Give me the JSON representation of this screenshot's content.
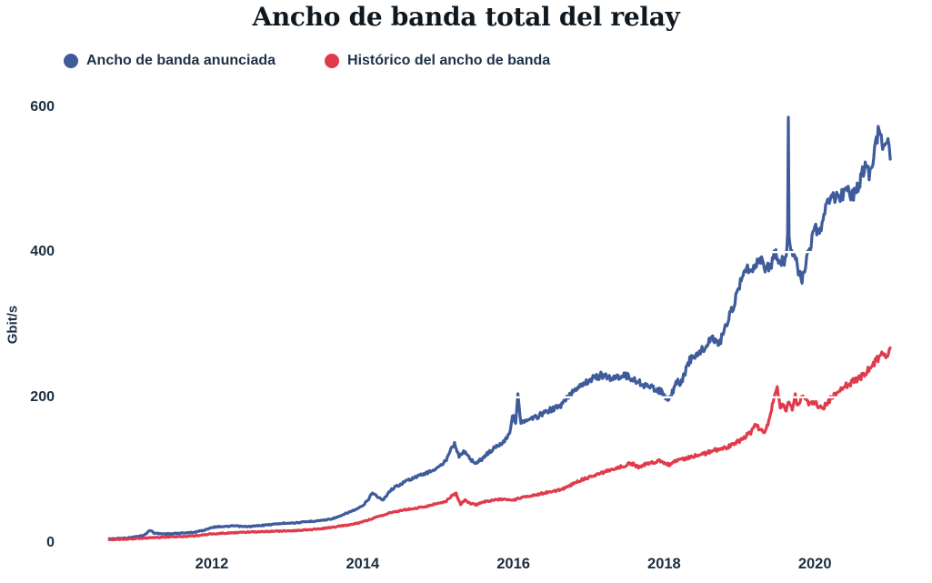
{
  "title": "Ancho de banda total del relay",
  "y_axis": {
    "label": "Gbit/s",
    "ticks": [
      0,
      200,
      400,
      600
    ]
  },
  "x_axis": {
    "ticks": [
      2012,
      2014,
      2016,
      2018,
      2020
    ]
  },
  "legend": [
    {
      "label": "Ancho de banda anunciada",
      "color": "#3e5b9b"
    },
    {
      "label": "Histórico del ancho de banda",
      "color": "#e03a4b"
    }
  ],
  "grid_color": "#ffffff",
  "chart_data": {
    "type": "line",
    "title": "Ancho de banda total del relay",
    "xlabel": "",
    "ylabel": "Gbit/s",
    "x_unit": "year",
    "y_unit": "Gbit/s",
    "xlim": [
      2010.64,
      2021.0
    ],
    "ylim": [
      0,
      620
    ],
    "grid": "horizontal-white",
    "legend_position": "top-left",
    "series": [
      {
        "name": "Ancho de banda anunciada",
        "color": "#3e5b9b",
        "points": [
          [
            2010.64,
            5
          ],
          [
            2010.75,
            5.5
          ],
          [
            2010.9,
            6.5
          ],
          [
            2011.0,
            8
          ],
          [
            2011.1,
            10
          ],
          [
            2011.18,
            17
          ],
          [
            2011.24,
            13
          ],
          [
            2011.32,
            12
          ],
          [
            2011.45,
            12
          ],
          [
            2011.6,
            13
          ],
          [
            2011.75,
            14
          ],
          [
            2011.9,
            17
          ],
          [
            2012.0,
            21
          ],
          [
            2012.1,
            22
          ],
          [
            2012.2,
            22
          ],
          [
            2012.3,
            23
          ],
          [
            2012.4,
            22
          ],
          [
            2012.5,
            22
          ],
          [
            2012.6,
            23
          ],
          [
            2012.7,
            24
          ],
          [
            2012.8,
            25
          ],
          [
            2012.9,
            26
          ],
          [
            2013.0,
            27
          ],
          [
            2013.1,
            27
          ],
          [
            2013.2,
            28
          ],
          [
            2013.3,
            29
          ],
          [
            2013.4,
            30
          ],
          [
            2013.5,
            31
          ],
          [
            2013.6,
            33
          ],
          [
            2013.7,
            36
          ],
          [
            2013.8,
            41
          ],
          [
            2013.9,
            45
          ],
          [
            2014.0,
            50
          ],
          [
            2014.08,
            60
          ],
          [
            2014.13,
            69
          ],
          [
            2014.2,
            63
          ],
          [
            2014.27,
            58
          ],
          [
            2014.35,
            70
          ],
          [
            2014.42,
            76
          ],
          [
            2014.5,
            80
          ],
          [
            2014.6,
            86
          ],
          [
            2014.7,
            90
          ],
          [
            2014.8,
            94
          ],
          [
            2014.9,
            98
          ],
          [
            2015.0,
            103
          ],
          [
            2015.1,
            112
          ],
          [
            2015.17,
            130
          ],
          [
            2015.22,
            137
          ],
          [
            2015.28,
            118
          ],
          [
            2015.34,
            126
          ],
          [
            2015.42,
            116
          ],
          [
            2015.5,
            109
          ],
          [
            2015.58,
            115
          ],
          [
            2015.65,
            122
          ],
          [
            2015.72,
            128
          ],
          [
            2015.8,
            134
          ],
          [
            2015.88,
            140
          ],
          [
            2015.95,
            152
          ],
          [
            2016.0,
            178
          ],
          [
            2016.03,
            162
          ],
          [
            2016.06,
            204
          ],
          [
            2016.1,
            165
          ],
          [
            2016.18,
            167
          ],
          [
            2016.27,
            171
          ],
          [
            2016.36,
            176
          ],
          [
            2016.45,
            181
          ],
          [
            2016.55,
            185
          ],
          [
            2016.63,
            188
          ],
          [
            2016.72,
            200
          ],
          [
            2016.82,
            212
          ],
          [
            2016.92,
            219
          ],
          [
            2017.0,
            223
          ],
          [
            2017.08,
            227
          ],
          [
            2017.16,
            230
          ],
          [
            2017.24,
            228
          ],
          [
            2017.32,
            226
          ],
          [
            2017.4,
            229
          ],
          [
            2017.48,
            231
          ],
          [
            2017.56,
            226
          ],
          [
            2017.64,
            222
          ],
          [
            2017.72,
            218
          ],
          [
            2017.8,
            214
          ],
          [
            2017.88,
            212
          ],
          [
            2017.96,
            208
          ],
          [
            2018.02,
            200
          ],
          [
            2018.06,
            194
          ],
          [
            2018.12,
            210
          ],
          [
            2018.17,
            222
          ],
          [
            2018.22,
            218
          ],
          [
            2018.28,
            235
          ],
          [
            2018.34,
            251
          ],
          [
            2018.42,
            258
          ],
          [
            2018.48,
            263
          ],
          [
            2018.55,
            269
          ],
          [
            2018.62,
            282
          ],
          [
            2018.68,
            278
          ],
          [
            2018.74,
            275
          ],
          [
            2018.8,
            295
          ],
          [
            2018.87,
            312
          ],
          [
            2018.94,
            332
          ],
          [
            2019.0,
            355
          ],
          [
            2019.07,
            382
          ],
          [
            2019.13,
            372
          ],
          [
            2019.2,
            383
          ],
          [
            2019.27,
            391
          ],
          [
            2019.34,
            380
          ],
          [
            2019.4,
            377
          ],
          [
            2019.47,
            398
          ],
          [
            2019.53,
            390
          ],
          [
            2019.58,
            386
          ],
          [
            2019.62,
            392
          ],
          [
            2019.638,
            420
          ],
          [
            2019.648,
            578
          ],
          [
            2019.658,
            430
          ],
          [
            2019.67,
            405
          ],
          [
            2019.73,
            400
          ],
          [
            2019.78,
            375
          ],
          [
            2019.83,
            361
          ],
          [
            2019.89,
            390
          ],
          [
            2019.95,
            410
          ],
          [
            2020.0,
            433
          ],
          [
            2020.05,
            421
          ],
          [
            2020.12,
            448
          ],
          [
            2020.18,
            470
          ],
          [
            2020.23,
            483
          ],
          [
            2020.3,
            471
          ],
          [
            2020.37,
            480
          ],
          [
            2020.43,
            489
          ],
          [
            2020.5,
            477
          ],
          [
            2020.55,
            486
          ],
          [
            2020.62,
            505
          ],
          [
            2020.68,
            518
          ],
          [
            2020.72,
            508
          ],
          [
            2020.78,
            535
          ],
          [
            2020.84,
            562
          ],
          [
            2020.87,
            568
          ],
          [
            2020.9,
            534
          ],
          [
            2020.94,
            560
          ],
          [
            2020.97,
            552
          ],
          [
            2021.0,
            528
          ]
        ]
      },
      {
        "name": "Histórico del ancho de banda",
        "color": "#e03a4b",
        "points": [
          [
            2010.64,
            4
          ],
          [
            2010.8,
            4.5
          ],
          [
            2011.0,
            5.5
          ],
          [
            2011.2,
            6.5
          ],
          [
            2011.4,
            7.5
          ],
          [
            2011.6,
            8
          ],
          [
            2011.8,
            9.5
          ],
          [
            2012.0,
            12
          ],
          [
            2012.2,
            13
          ],
          [
            2012.4,
            14
          ],
          [
            2012.6,
            14.5
          ],
          [
            2012.8,
            15.5
          ],
          [
            2013.0,
            16
          ],
          [
            2013.2,
            17
          ],
          [
            2013.4,
            18.5
          ],
          [
            2013.6,
            21
          ],
          [
            2013.8,
            24
          ],
          [
            2013.95,
            27
          ],
          [
            2014.1,
            32
          ],
          [
            2014.25,
            37
          ],
          [
            2014.4,
            42
          ],
          [
            2014.55,
            45
          ],
          [
            2014.7,
            47
          ],
          [
            2014.85,
            50
          ],
          [
            2015.0,
            54
          ],
          [
            2015.1,
            56
          ],
          [
            2015.18,
            64
          ],
          [
            2015.24,
            67
          ],
          [
            2015.3,
            53
          ],
          [
            2015.36,
            58
          ],
          [
            2015.42,
            54
          ],
          [
            2015.5,
            52
          ],
          [
            2015.6,
            56
          ],
          [
            2015.7,
            58
          ],
          [
            2015.8,
            59
          ],
          [
            2015.9,
            60
          ],
          [
            2016.0,
            58
          ],
          [
            2016.1,
            62
          ],
          [
            2016.2,
            64
          ],
          [
            2016.3,
            66
          ],
          [
            2016.4,
            68
          ],
          [
            2016.5,
            70
          ],
          [
            2016.6,
            72
          ],
          [
            2016.7,
            76
          ],
          [
            2016.8,
            81
          ],
          [
            2016.9,
            86
          ],
          [
            2017.0,
            90
          ],
          [
            2017.1,
            94
          ],
          [
            2017.2,
            97
          ],
          [
            2017.3,
            100
          ],
          [
            2017.4,
            103
          ],
          [
            2017.5,
            107
          ],
          [
            2017.57,
            109
          ],
          [
            2017.65,
            104
          ],
          [
            2017.75,
            108
          ],
          [
            2017.85,
            111
          ],
          [
            2017.95,
            112
          ],
          [
            2018.02,
            110
          ],
          [
            2018.08,
            107
          ],
          [
            2018.15,
            112
          ],
          [
            2018.25,
            115
          ],
          [
            2018.35,
            118
          ],
          [
            2018.45,
            121
          ],
          [
            2018.55,
            123
          ],
          [
            2018.65,
            127
          ],
          [
            2018.75,
            129
          ],
          [
            2018.85,
            132
          ],
          [
            2018.95,
            137
          ],
          [
            2019.05,
            144
          ],
          [
            2019.15,
            152
          ],
          [
            2019.22,
            163
          ],
          [
            2019.28,
            155
          ],
          [
            2019.33,
            150
          ],
          [
            2019.4,
            172
          ],
          [
            2019.46,
            200
          ],
          [
            2019.5,
            214
          ],
          [
            2019.54,
            187
          ],
          [
            2019.58,
            193
          ],
          [
            2019.62,
            181
          ],
          [
            2019.66,
            196
          ],
          [
            2019.7,
            186
          ],
          [
            2019.74,
            201
          ],
          [
            2019.78,
            189
          ],
          [
            2019.83,
            200
          ],
          [
            2019.88,
            195
          ],
          [
            2019.93,
            190
          ],
          [
            2019.98,
            193
          ],
          [
            2020.04,
            189
          ],
          [
            2020.1,
            185
          ],
          [
            2020.16,
            192
          ],
          [
            2020.22,
            199
          ],
          [
            2020.3,
            207
          ],
          [
            2020.38,
            213
          ],
          [
            2020.45,
            219
          ],
          [
            2020.52,
            222
          ],
          [
            2020.6,
            226
          ],
          [
            2020.67,
            233
          ],
          [
            2020.74,
            241
          ],
          [
            2020.8,
            248
          ],
          [
            2020.85,
            256
          ],
          [
            2020.9,
            262
          ],
          [
            2020.94,
            256
          ],
          [
            2021.0,
            268
          ]
        ]
      }
    ]
  }
}
